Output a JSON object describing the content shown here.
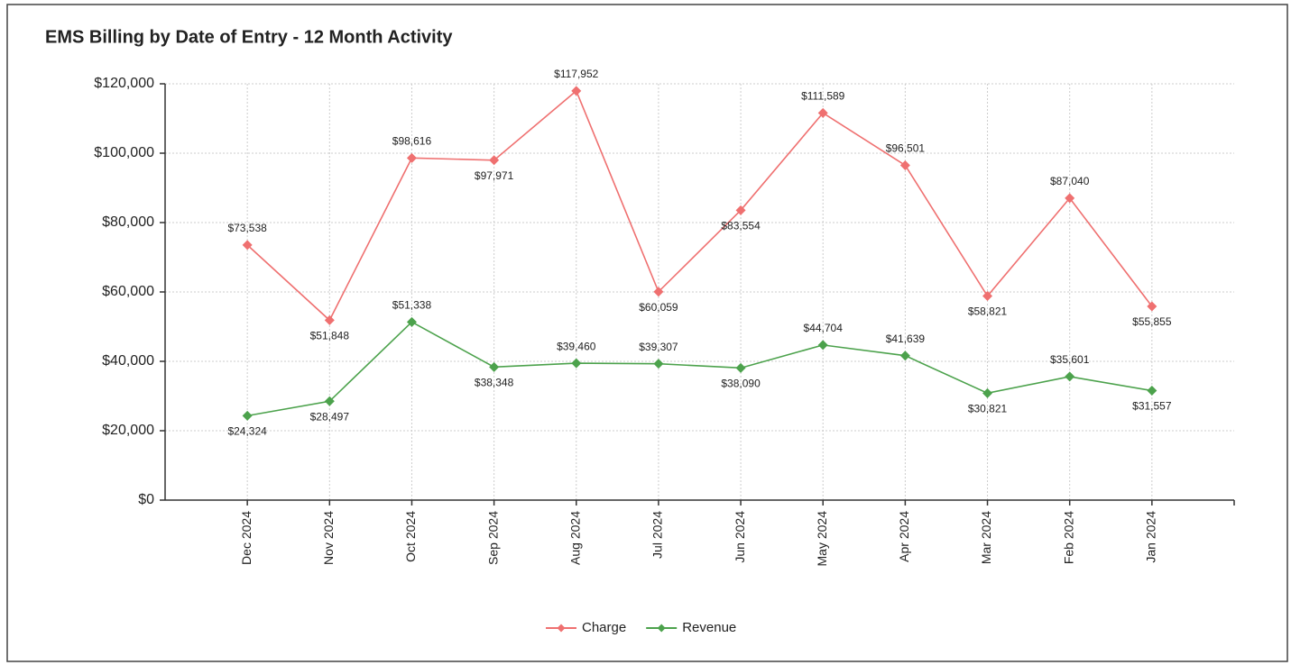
{
  "chart_data": {
    "type": "line",
    "title": "EMS Billing by Date of Entry - 12 Month Activity",
    "categories": [
      "Dec 2024",
      "Nov 2024",
      "Oct 2024",
      "Sep 2024",
      "Aug 2024",
      "Jul 2024",
      "Jun 2024",
      "May 2024",
      "Apr 2024",
      "Mar 2024",
      "Feb 2024",
      "Jan 2024"
    ],
    "series": [
      {
        "name": "Charge",
        "color": "#ef7070",
        "values": [
          73538,
          51848,
          98616,
          97971,
          117952,
          60059,
          83554,
          111589,
          96501,
          58821,
          87040,
          55855
        ],
        "value_labels": [
          "$73,538",
          "$51,848",
          "$98,616",
          "$97,971",
          "$117,952",
          "$60,059",
          "$83,554",
          "$111,589",
          "$96,501",
          "$58,821",
          "$87,040",
          "$55,855"
        ]
      },
      {
        "name": "Revenue",
        "color": "#4ca24c",
        "values": [
          24324,
          28497,
          51338,
          38348,
          39460,
          39307,
          38090,
          44704,
          41639,
          30821,
          35601,
          31557
        ],
        "value_labels": [
          "$24,324",
          "$28,497",
          "$51,338",
          "$38,348",
          "$39,460",
          "$39,307",
          "$38,090",
          "$44,704",
          "$41,639",
          "$30,821",
          "$35,601",
          "$31,557"
        ]
      }
    ],
    "ylim": [
      0,
      120000
    ],
    "yticks": [
      {
        "value": 0,
        "label": "$0"
      },
      {
        "value": 20000,
        "label": "$20,000"
      },
      {
        "value": 40000,
        "label": "$40,000"
      },
      {
        "value": 60000,
        "label": "$60,000"
      },
      {
        "value": 80000,
        "label": "$80,000"
      },
      {
        "value": 100000,
        "label": "$100,000"
      },
      {
        "value": 120000,
        "label": "$120,000"
      }
    ],
    "grid": true,
    "legend": "bottom"
  }
}
